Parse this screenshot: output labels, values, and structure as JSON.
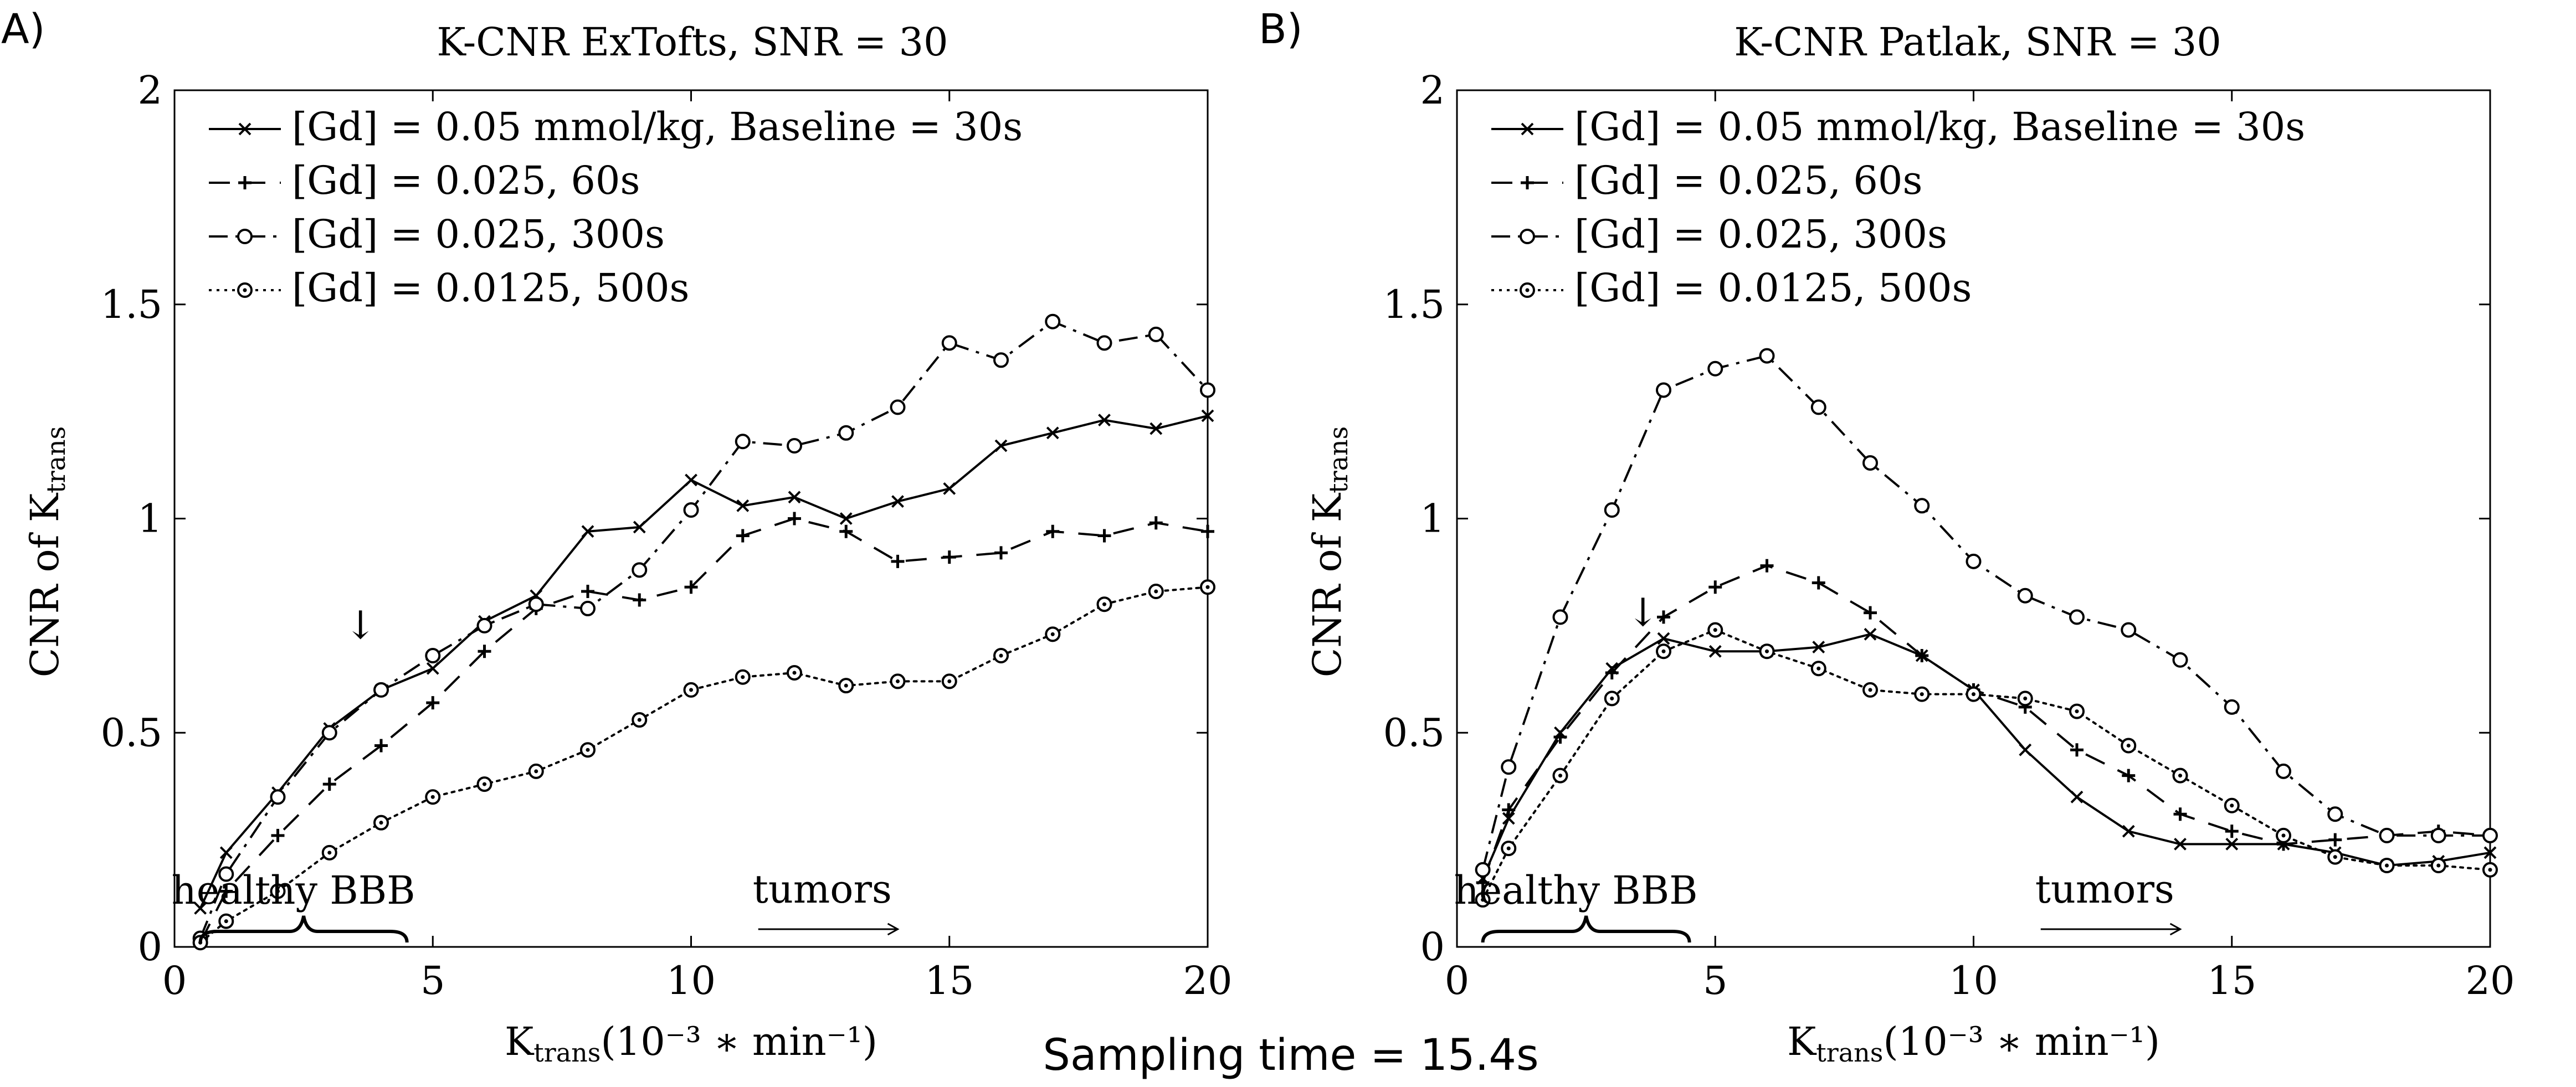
{
  "caption": "Sampling time = 15.4s",
  "chart_data": [
    {
      "type": "line",
      "panel": "A)",
      "title": "K-CNR ExTofts, SNR = 30",
      "ylabel": "CNR of K",
      "ylabel_sub": "trans",
      "xlabel": "K",
      "xlabel_sub": "trans",
      "xlabel_units": "(10⁻³ ∗ min⁻¹)",
      "xlim": [
        0,
        20
      ],
      "ylim": [
        0,
        2
      ],
      "xticks": [
        0,
        5,
        10,
        15,
        20
      ],
      "yticks": [
        0,
        0.5,
        1,
        1.5,
        2
      ],
      "xtick_labels": [
        "0",
        "5",
        "10",
        "15",
        "20"
      ],
      "ytick_labels": [
        "0",
        "0.5",
        "1",
        "1.5",
        "2"
      ],
      "legend_position": "top-left",
      "annotations": {
        "healthy": "healthy BBB",
        "healthy_range": [
          0.5,
          4.5
        ],
        "tumors": "tumors",
        "tumors_range": [
          11.3,
          14
        ],
        "arrow_down": "↓",
        "arrow_x": 3.6
      },
      "series": [
        {
          "name": "[Gd] = 0.05 mmol/kg, Baseline = 30s",
          "style": "solid",
          "marker": "x",
          "x": [
            0.5,
            1,
            2,
            3,
            4,
            5,
            6,
            7,
            8,
            9,
            10,
            11,
            12,
            13,
            14,
            15,
            16,
            17,
            18,
            19,
            20
          ],
          "values": [
            0.09,
            0.22,
            0.36,
            0.51,
            0.6,
            0.65,
            0.76,
            0.82,
            0.97,
            0.98,
            1.09,
            1.03,
            1.05,
            1.0,
            1.04,
            1.07,
            1.17,
            1.2,
            1.23,
            1.21,
            1.24
          ]
        },
        {
          "name": "[Gd] = 0.025, 60s",
          "style": "dashed",
          "marker": "plus",
          "x": [
            0.5,
            1,
            2,
            3,
            4,
            5,
            6,
            7,
            8,
            9,
            10,
            11,
            12,
            13,
            14,
            15,
            16,
            17,
            18,
            19,
            20
          ],
          "values": [
            0.01,
            0.13,
            0.26,
            0.38,
            0.47,
            0.57,
            0.69,
            0.79,
            0.83,
            0.81,
            0.84,
            0.96,
            1.0,
            0.97,
            0.9,
            0.91,
            0.92,
            0.97,
            0.96,
            0.99,
            0.97
          ]
        },
        {
          "name": "[Gd] = 0.025, 300s",
          "style": "dashdot",
          "marker": "circle",
          "x": [
            0.5,
            1,
            2,
            3,
            4,
            5,
            6,
            7,
            8,
            9,
            10,
            11,
            12,
            13,
            14,
            15,
            16,
            17,
            18,
            19,
            20
          ],
          "values": [
            0.02,
            0.17,
            0.35,
            0.5,
            0.6,
            0.68,
            0.75,
            0.8,
            0.79,
            0.88,
            1.02,
            1.18,
            1.17,
            1.2,
            1.26,
            1.41,
            1.37,
            1.46,
            1.41,
            1.43,
            1.3
          ]
        },
        {
          "name": "[Gd] = 0.0125, 500s",
          "style": "dotted",
          "marker": "circle-dot",
          "x": [
            0.5,
            1,
            2,
            3,
            4,
            5,
            6,
            7,
            8,
            9,
            10,
            11,
            12,
            13,
            14,
            15,
            16,
            17,
            18,
            19,
            20
          ],
          "values": [
            0.01,
            0.06,
            0.13,
            0.22,
            0.29,
            0.35,
            0.38,
            0.41,
            0.46,
            0.53,
            0.6,
            0.63,
            0.64,
            0.61,
            0.62,
            0.62,
            0.68,
            0.73,
            0.8,
            0.83,
            0.84
          ]
        }
      ]
    },
    {
      "type": "line",
      "panel": "B)",
      "title": "K-CNR Patlak, SNR = 30",
      "ylabel": "CNR of K",
      "ylabel_sub": "trans",
      "xlabel": "K",
      "xlabel_sub": "trans",
      "xlabel_units": "(10⁻³ ∗ min⁻¹)",
      "xlim": [
        0,
        20
      ],
      "ylim": [
        0,
        2
      ],
      "xticks": [
        0,
        5,
        10,
        15,
        20
      ],
      "yticks": [
        0,
        0.5,
        1,
        1.5,
        2
      ],
      "xtick_labels": [
        "0",
        "5",
        "10",
        "15",
        "20"
      ],
      "ytick_labels": [
        "0",
        "0.5",
        "1",
        "1.5",
        "2"
      ],
      "legend_position": "top-left",
      "annotations": {
        "healthy": "healthy BBB",
        "healthy_range": [
          0.5,
          4.5
        ],
        "tumors": "tumors",
        "tumors_range": [
          11.3,
          14
        ],
        "arrow_down": "↓",
        "arrow_x": 3.6
      },
      "series": [
        {
          "name": "[Gd] = 0.05 mmol/kg, Baseline = 30s",
          "style": "solid",
          "marker": "x",
          "x": [
            0.5,
            1,
            2,
            3,
            4,
            5,
            6,
            7,
            8,
            9,
            10,
            11,
            12,
            13,
            14,
            15,
            16,
            17,
            18,
            19,
            20
          ],
          "values": [
            0.16,
            0.3,
            0.5,
            0.65,
            0.72,
            0.69,
            0.69,
            0.7,
            0.73,
            0.68,
            0.6,
            0.46,
            0.35,
            0.27,
            0.24,
            0.24,
            0.24,
            0.22,
            0.19,
            0.2,
            0.22
          ]
        },
        {
          "name": "[Gd] = 0.025, 60s",
          "style": "dashed",
          "marker": "plus",
          "x": [
            0.5,
            1,
            2,
            3,
            4,
            5,
            6,
            7,
            8,
            9,
            10,
            11,
            12,
            13,
            14,
            15,
            16,
            17,
            18,
            19,
            20
          ],
          "values": [
            0.15,
            0.32,
            0.49,
            0.64,
            0.77,
            0.84,
            0.89,
            0.85,
            0.78,
            0.68,
            0.6,
            0.56,
            0.46,
            0.4,
            0.31,
            0.27,
            0.24,
            0.25,
            0.26,
            0.27,
            0.26
          ]
        },
        {
          "name": "[Gd] = 0.025, 300s",
          "style": "dashdot",
          "marker": "circle",
          "x": [
            0.5,
            1,
            2,
            3,
            4,
            5,
            6,
            7,
            8,
            9,
            10,
            11,
            12,
            13,
            14,
            15,
            16,
            17,
            18,
            19,
            20
          ],
          "values": [
            0.18,
            0.42,
            0.77,
            1.02,
            1.3,
            1.35,
            1.38,
            1.26,
            1.13,
            1.03,
            0.9,
            0.82,
            0.77,
            0.74,
            0.67,
            0.56,
            0.41,
            0.31,
            0.26,
            0.26,
            0.26
          ]
        },
        {
          "name": "[Gd] = 0.0125, 500s",
          "style": "dotted",
          "marker": "circle-dot",
          "x": [
            0.5,
            1,
            2,
            3,
            4,
            5,
            6,
            7,
            8,
            9,
            10,
            11,
            12,
            13,
            14,
            15,
            16,
            17,
            18,
            19,
            20
          ],
          "values": [
            0.11,
            0.23,
            0.4,
            0.58,
            0.69,
            0.74,
            0.69,
            0.65,
            0.6,
            0.59,
            0.59,
            0.58,
            0.55,
            0.47,
            0.4,
            0.33,
            0.26,
            0.21,
            0.19,
            0.19,
            0.18
          ]
        }
      ]
    }
  ]
}
